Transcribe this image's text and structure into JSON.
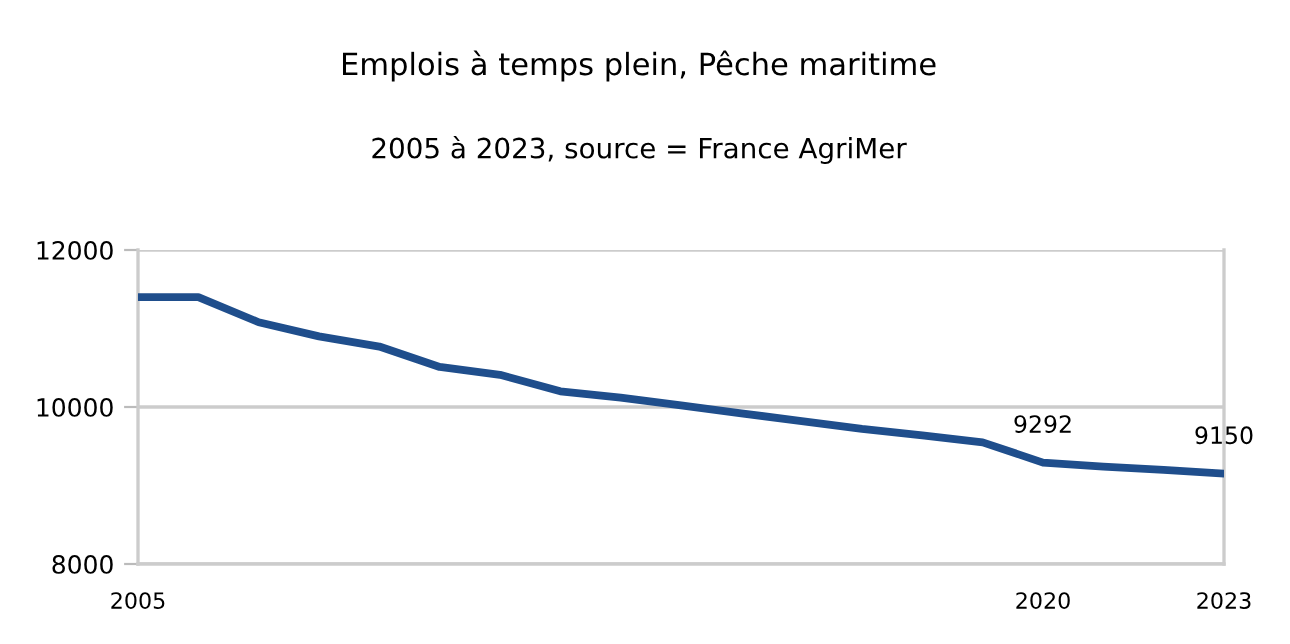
{
  "chart_data": {
    "type": "line",
    "title": "Emplois à temps plein, Pêche maritime",
    "subtitle": "2005 à 2023, source = France AgriMer",
    "x": [
      2005,
      2006,
      2007,
      2008,
      2009,
      2010,
      2011,
      2012,
      2013,
      2014,
      2015,
      2016,
      2017,
      2018,
      2019,
      2020,
      2021,
      2022,
      2023
    ],
    "series": [
      {
        "color": "#1f4e8c",
        "values": [
          11400,
          11400,
          11080,
          10900,
          10770,
          10510,
          10410,
          10200,
          10120,
          10020,
          9920,
          9820,
          9720,
          9640,
          9550,
          9292,
          9240,
          9200,
          9150
        ],
        "value_labels": [
          null,
          null,
          null,
          null,
          null,
          null,
          null,
          null,
          null,
          null,
          null,
          null,
          null,
          null,
          null,
          "9292",
          null,
          null,
          "9150"
        ]
      }
    ],
    "xlim": [
      2005,
      2023
    ],
    "xticks": [
      2005,
      2020,
      2023
    ],
    "ylim": [
      8000,
      12000
    ],
    "yticks": [
      8000,
      10000,
      12000
    ],
    "grid": "y",
    "legend": false,
    "marker": "none",
    "line_style": "solid"
  }
}
